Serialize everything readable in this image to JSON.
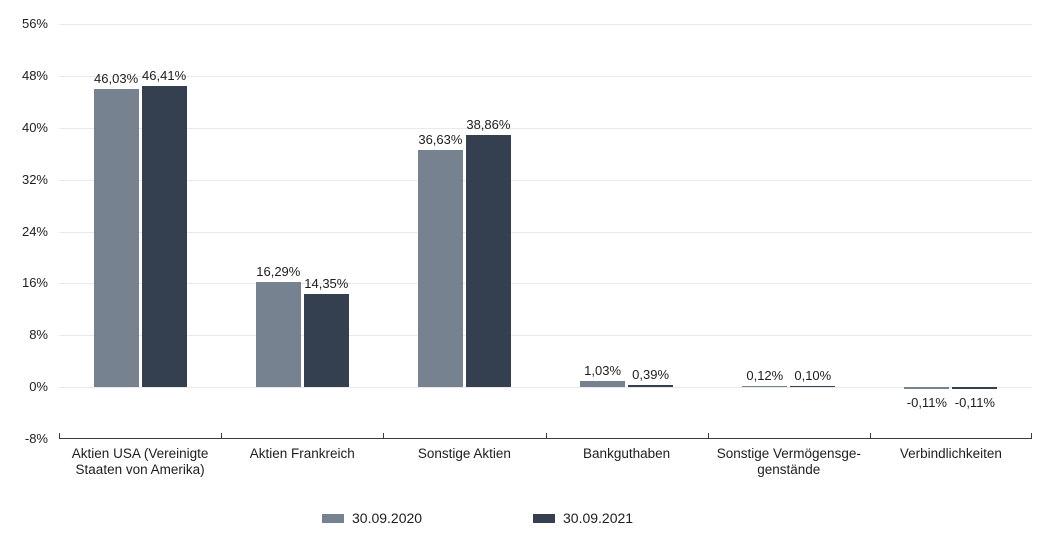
{
  "chart_data": {
    "type": "bar",
    "title": "",
    "xlabel": "",
    "ylabel": "",
    "ylim": [
      -8,
      56
    ],
    "grid": "horizontal",
    "legend_position": "bottom",
    "categories": [
      "Aktien USA (Vereinigte\nStaaten von Amerika)",
      "Aktien Frankreich",
      "Sonstige Aktien",
      "Bankguthaben",
      "Sonstige Vermögensge-\ngenstände",
      "Verbindlichkeiten"
    ],
    "series": [
      {
        "name": "30.09.2020",
        "color": "#76828F",
        "values": [
          46.03,
          16.29,
          36.63,
          1.03,
          0.12,
          -0.11
        ],
        "labels": [
          "46,03%",
          "16,29%",
          "36,63%",
          "1,03%",
          "0,12%",
          "-0,11%"
        ]
      },
      {
        "name": "30.09.2021",
        "color": "#344050",
        "values": [
          46.41,
          14.35,
          38.86,
          0.39,
          0.1,
          -0.11
        ],
        "labels": [
          "46,41%",
          "14,35%",
          "38,86%",
          "0,39%",
          "0,10%",
          "-0,11%"
        ]
      }
    ],
    "y_ticks": [
      {
        "value": 56,
        "label": "56%"
      },
      {
        "value": 48,
        "label": "48%"
      },
      {
        "value": 40,
        "label": "40%"
      },
      {
        "value": 32,
        "label": "32%"
      },
      {
        "value": 24,
        "label": "24%"
      },
      {
        "value": 16,
        "label": "16%"
      },
      {
        "value": 8,
        "label": "8%"
      },
      {
        "value": 0,
        "label": "0%"
      },
      {
        "value": -8,
        "label": "-8%"
      }
    ],
    "colors": {
      "gridline": "#e9e9e9",
      "axis": "#3c3c3c",
      "text": "#1d1d1d"
    }
  }
}
